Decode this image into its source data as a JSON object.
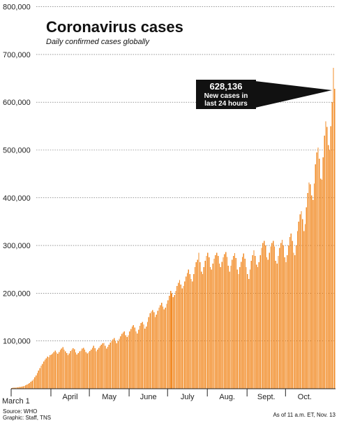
{
  "chart_data": {
    "type": "bar",
    "title": "Coronavirus cases",
    "subtitle": "Daily confirmed cases globally",
    "ylim": [
      0,
      800000
    ],
    "y_ticks": [
      "800,000",
      "700,000",
      "600,000",
      "500,000",
      "400,000",
      "300,000",
      "200,000",
      "100,000"
    ],
    "y_tick_values": [
      800000,
      700000,
      600000,
      500000,
      400000,
      300000,
      200000,
      100000
    ],
    "x_ticks": [
      "March 1",
      "April",
      "May",
      "June",
      "July",
      "Aug.",
      "Sept.",
      "Oct."
    ],
    "x_tick_day_index": [
      0,
      31,
      61,
      92,
      122,
      153,
      184,
      214
    ],
    "x_start": "March 1",
    "bar_color": "#f28c28",
    "grid": true,
    "annotation": {
      "value_label": "628,136",
      "line1": "New cases in",
      "line2": "last 24 hours",
      "value": 628136
    },
    "values": [
      1800,
      2000,
      2200,
      2400,
      2600,
      3000,
      3500,
      4000,
      4500,
      5000,
      6000,
      7000,
      8500,
      10000,
      12000,
      14500,
      17000,
      20000,
      24000,
      28000,
      33000,
      38000,
      43000,
      48000,
      52000,
      57000,
      61000,
      64000,
      67000,
      66000,
      70000,
      72000,
      74000,
      77000,
      80000,
      76000,
      73000,
      77000,
      81000,
      84000,
      87000,
      82000,
      78000,
      75000,
      70000,
      74000,
      79000,
      82000,
      85000,
      83000,
      76000,
      72000,
      75000,
      78000,
      80000,
      84000,
      86000,
      82000,
      77000,
      74000,
      76000,
      79000,
      82000,
      86000,
      90000,
      85000,
      78000,
      82000,
      86000,
      89000,
      92000,
      95000,
      96000,
      90000,
      84000,
      88000,
      92000,
      97000,
      100000,
      103000,
      106000,
      100000,
      95000,
      100000,
      105000,
      110000,
      115000,
      118000,
      120000,
      112000,
      108000,
      112000,
      120000,
      125000,
      130000,
      133000,
      128000,
      120000,
      116000,
      124000,
      132000,
      138000,
      140000,
      135000,
      126000,
      130000,
      140000,
      150000,
      158000,
      162000,
      165000,
      160000,
      150000,
      155000,
      163000,
      170000,
      175000,
      180000,
      172000,
      166000,
      170000,
      178000,
      185000,
      195000,
      205000,
      200000,
      192000,
      196000,
      205000,
      215000,
      222000,
      228000,
      218000,
      210000,
      215000,
      225000,
      235000,
      242000,
      250000,
      240000,
      230000,
      225000,
      240000,
      255000,
      265000,
      270000,
      285000,
      265000,
      245000,
      240000,
      255000,
      268000,
      278000,
      285000,
      275000,
      255000,
      250000,
      262000,
      272000,
      280000,
      285000,
      278000,
      262000,
      255000,
      266000,
      275000,
      282000,
      286000,
      276000,
      258000,
      245000,
      258000,
      270000,
      278000,
      284000,
      274000,
      250000,
      240000,
      255000,
      266000,
      276000,
      283000,
      272000,
      255000,
      240000,
      230000,
      250000,
      268000,
      280000,
      290000,
      278000,
      260000,
      255000,
      265000,
      280000,
      295000,
      305000,
      310000,
      300000,
      275000,
      270000,
      285000,
      298000,
      305000,
      310000,
      298000,
      268000,
      262000,
      278000,
      295000,
      305000,
      312000,
      300000,
      275000,
      265000,
      280000,
      300000,
      318000,
      325000,
      310000,
      285000,
      280000,
      300000,
      330000,
      350000,
      365000,
      372000,
      355000,
      330000,
      345000,
      380000,
      410000,
      432000,
      428000,
      405000,
      395000,
      430000,
      470000,
      495000,
      505000,
      482000,
      440000,
      438000,
      485000,
      530000,
      560000,
      548000,
      510000,
      500000,
      550000,
      600000,
      672000,
      628136
    ]
  }
}
